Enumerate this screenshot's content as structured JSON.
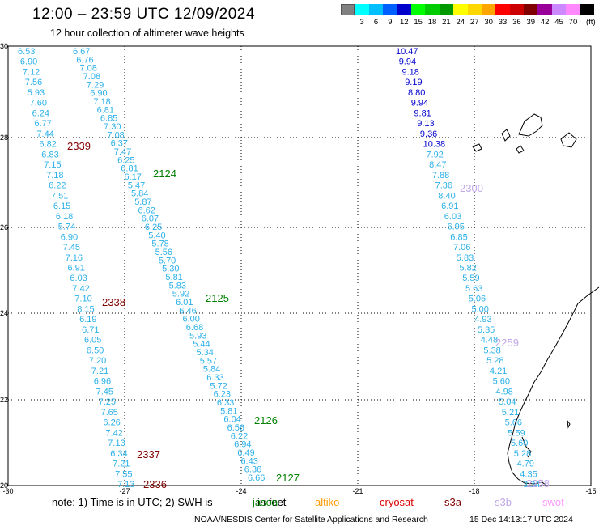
{
  "header": {
    "title": "12:00 – 23:59 UTC 12/09/2024",
    "subtitle": "12 hour collection of altimeter wave heights"
  },
  "legend": {
    "unit": "(ft)",
    "items": [
      {
        "label": "",
        "color": "#808080"
      },
      {
        "label": "3",
        "color": "#00ffff"
      },
      {
        "label": "6",
        "color": "#00bfff"
      },
      {
        "label": "9",
        "color": "#0060ff"
      },
      {
        "label": "12",
        "color": "#0000cc"
      },
      {
        "label": "15",
        "color": "#00ff00"
      },
      {
        "label": "18",
        "color": "#00cc00"
      },
      {
        "label": "21",
        "color": "#009900"
      },
      {
        "label": "24",
        "color": "#ffff00"
      },
      {
        "label": "27",
        "color": "#ffd700"
      },
      {
        "label": "30",
        "color": "#ffa500"
      },
      {
        "label": "33",
        "color": "#ff0000"
      },
      {
        "label": "36",
        "color": "#cc0000"
      },
      {
        "label": "39",
        "color": "#800000"
      },
      {
        "label": "42",
        "color": "#990099"
      },
      {
        "label": "45",
        "color": "#cc88ff"
      },
      {
        "label": "70",
        "color": "#ff88ff"
      },
      {
        "label": "",
        "color": "#000000"
      }
    ]
  },
  "axes": {
    "lon_labels": [
      "-30",
      "-27",
      "-24",
      "-21",
      "-18",
      "-15"
    ],
    "lat_labels": [
      "30",
      "28",
      "26",
      "24",
      "22",
      "20"
    ]
  },
  "tracks": [
    {
      "name": "track-a",
      "color": "#2ab0e8",
      "values": [
        "6.53",
        "6.90",
        "7.12",
        "7.56",
        "5.93",
        "7.60",
        "6.24",
        "6.77",
        "7.44",
        "6.82",
        "6.83",
        "7.15",
        "7.18",
        "6.22",
        "7.51",
        "6.15",
        "6.18",
        "5.74",
        "6.90",
        "7.45",
        "7.16",
        "6.91",
        "6.03",
        "7.42",
        "7.10",
        "8.15",
        "6.19",
        "6.71",
        "6.05",
        "6.50",
        "7.20",
        "7.21",
        "6.96",
        "7.45",
        "7.25",
        "7.65",
        "6.26",
        "7.42",
        "7.13",
        "6.34",
        "7.21",
        "7.55",
        "7.13"
      ]
    },
    {
      "name": "track-b",
      "color": "#2ab0e8",
      "values": [
        "6.67",
        "6.76",
        "7.08",
        "7.08",
        "7.29",
        "6.90",
        "7.18",
        "6.81",
        "6.85",
        "7.30",
        "7.08",
        "6.37",
        "7.47",
        "6.25",
        "6.81",
        "6.17",
        "5.47",
        "5.84",
        "5.87",
        "6.62",
        "6.07",
        "6.25",
        "5.40",
        "5.78",
        "5.56",
        "5.70",
        "5.30",
        "5.81",
        "5.83",
        "5.92",
        "6.01",
        "6.46",
        "6.00",
        "6.68",
        "5.93",
        "5.44",
        "5.34",
        "5.57",
        "5.84",
        "6.33",
        "5.72",
        "6.23",
        "6.33",
        "5.81",
        "6.04",
        "6.56",
        "6.22",
        "6.94",
        "6.49",
        "6.43",
        "6.36",
        "6.66"
      ]
    },
    {
      "name": "track-c",
      "color": "#2ab0e8",
      "values": [
        "10.47",
        "9.94",
        "9.18",
        "9.19",
        "8.80",
        "9.94",
        "9.81",
        "9.13",
        "9.36",
        "10.38",
        "7.92",
        "8.47",
        "7.88",
        "7.36",
        "8.40",
        "6.91",
        "6.03",
        "6.95",
        "6.85",
        "7.06",
        "5.83",
        "5.82",
        "5.59",
        "5.63",
        "5.06",
        "5.00",
        "4.93",
        "5.35",
        "4.48",
        "5.38",
        "5.28",
        "4.21",
        "5.60",
        "4.98",
        "5.04",
        "5.21",
        "5.66",
        "5.59",
        "5.60",
        "5.28",
        "4.79",
        "4.35",
        "3.34"
      ],
      "colors": [
        "#0000cc",
        "#0000cc",
        "#0000cc",
        "#0000cc",
        "#0000cc",
        "#0000cc",
        "#0000cc",
        "#0000cc",
        "#0000cc",
        "#0000cc",
        "#2ab0e8",
        "#2ab0e8",
        "#2ab0e8",
        "#2ab0e8",
        "#2ab0e8",
        "#2ab0e8",
        "#2ab0e8",
        "#2ab0e8",
        "#2ab0e8",
        "#2ab0e8",
        "#2ab0e8",
        "#2ab0e8",
        "#2ab0e8",
        "#2ab0e8",
        "#2ab0e8",
        "#2ab0e8",
        "#2ab0e8",
        "#2ab0e8",
        "#2ab0e8",
        "#2ab0e8",
        "#2ab0e8",
        "#2ab0e8",
        "#2ab0e8",
        "#2ab0e8",
        "#2ab0e8",
        "#2ab0e8",
        "#2ab0e8",
        "#2ab0e8",
        "#2ab0e8",
        "#2ab0e8",
        "#2ab0e8",
        "#2ab0e8",
        "#2ab0e8"
      ]
    }
  ],
  "pass_times": [
    {
      "label": "2339",
      "color": "#800000"
    },
    {
      "label": "2124",
      "color": "#008000"
    },
    {
      "label": "2300",
      "color": "#c0a8e8"
    },
    {
      "label": "2338",
      "color": "#800000"
    },
    {
      "label": "2125",
      "color": "#008000"
    },
    {
      "label": "2259",
      "color": "#c0a8e8"
    },
    {
      "label": "2126",
      "color": "#008000"
    },
    {
      "label": "2337",
      "color": "#800000"
    },
    {
      "label": "2127",
      "color": "#008000"
    },
    {
      "label": "2336",
      "color": "#800000"
    },
    {
      "label": "2258",
      "color": "#c0a8e8"
    }
  ],
  "note": {
    "prefix": "note:  1) Time is in UTC; 2) SWH is",
    "sat_overlap": "in feet",
    "jason": "jason",
    "altika": "altiko",
    "cryosat": "cryosat",
    "s3a": "s3a",
    "s3b": "s3b",
    "swot": "swot",
    "colors": {
      "jason": "#008000",
      "altika": "#ff9900",
      "cryosat": "#dd0000",
      "s3a": "#800000",
      "s3b": "#c0a8e8",
      "swot": "#ff99ff"
    }
  },
  "footer": {
    "credit": "NOAA/NESDIS Center for Satellite Applications and Research",
    "timestamp": "15 Dec 14:13:17 UTC 2024"
  }
}
